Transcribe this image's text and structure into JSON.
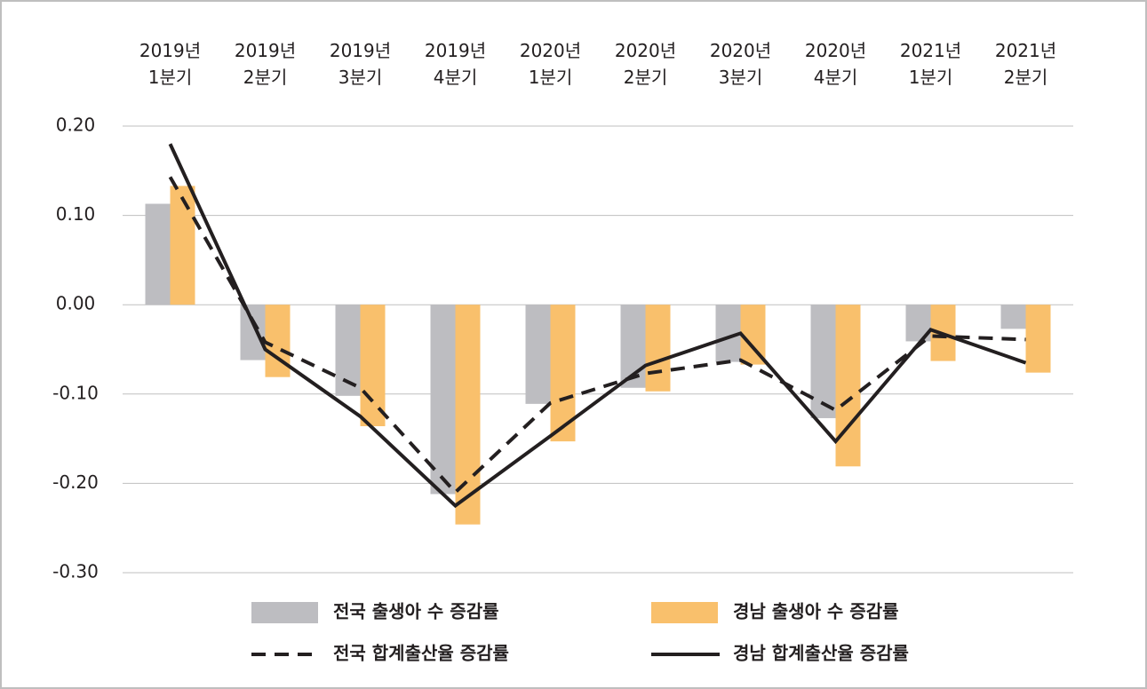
{
  "chart_data": {
    "type": "bar",
    "categories": [
      "2019년 1분기",
      "2019년 2분기",
      "2019년 3분기",
      "2019년 4분기",
      "2020년 1분기",
      "2020년 2분기",
      "2020년 3분기",
      "2020년 4분기",
      "2021년 1분기",
      "2021년 2분기"
    ],
    "series": [
      {
        "name": "전국 출생아 수 증감률",
        "type": "bar",
        "color": "#bdbdc1",
        "values": [
          0.113,
          -0.062,
          -0.102,
          -0.212,
          -0.111,
          -0.093,
          -0.064,
          -0.127,
          -0.041,
          -0.027
        ]
      },
      {
        "name": "경남 출생아 수 증감률",
        "type": "bar",
        "color": "#f9c06c",
        "values": [
          0.133,
          -0.081,
          -0.136,
          -0.246,
          -0.153,
          -0.097,
          -0.067,
          -0.181,
          -0.063,
          -0.076
        ]
      },
      {
        "name": "전국 합계출산율 증감률",
        "type": "line",
        "style": "dashed",
        "color": "#231f20",
        "values": [
          0.143,
          -0.042,
          -0.093,
          -0.21,
          -0.11,
          -0.077,
          -0.062,
          -0.118,
          -0.035,
          -0.039
        ]
      },
      {
        "name": "경남 합계출산율 증감률",
        "type": "line",
        "style": "solid",
        "color": "#231f20",
        "values": [
          0.18,
          -0.05,
          -0.125,
          -0.225,
          -0.147,
          -0.068,
          -0.032,
          -0.153,
          -0.028,
          -0.065
        ]
      }
    ],
    "ylim": [
      -0.3,
      0.2
    ],
    "yticks": [
      {
        "value": 0.2,
        "label": "0.20"
      },
      {
        "value": 0.1,
        "label": "0.10"
      },
      {
        "value": 0,
        "label": "0.00"
      },
      {
        "value": -0.1,
        "label": "-0.10"
      },
      {
        "value": -0.2,
        "label": "-0.20"
      },
      {
        "value": -0.3,
        "label": "-0.30"
      }
    ],
    "grid": true,
    "legend": "bottom"
  }
}
